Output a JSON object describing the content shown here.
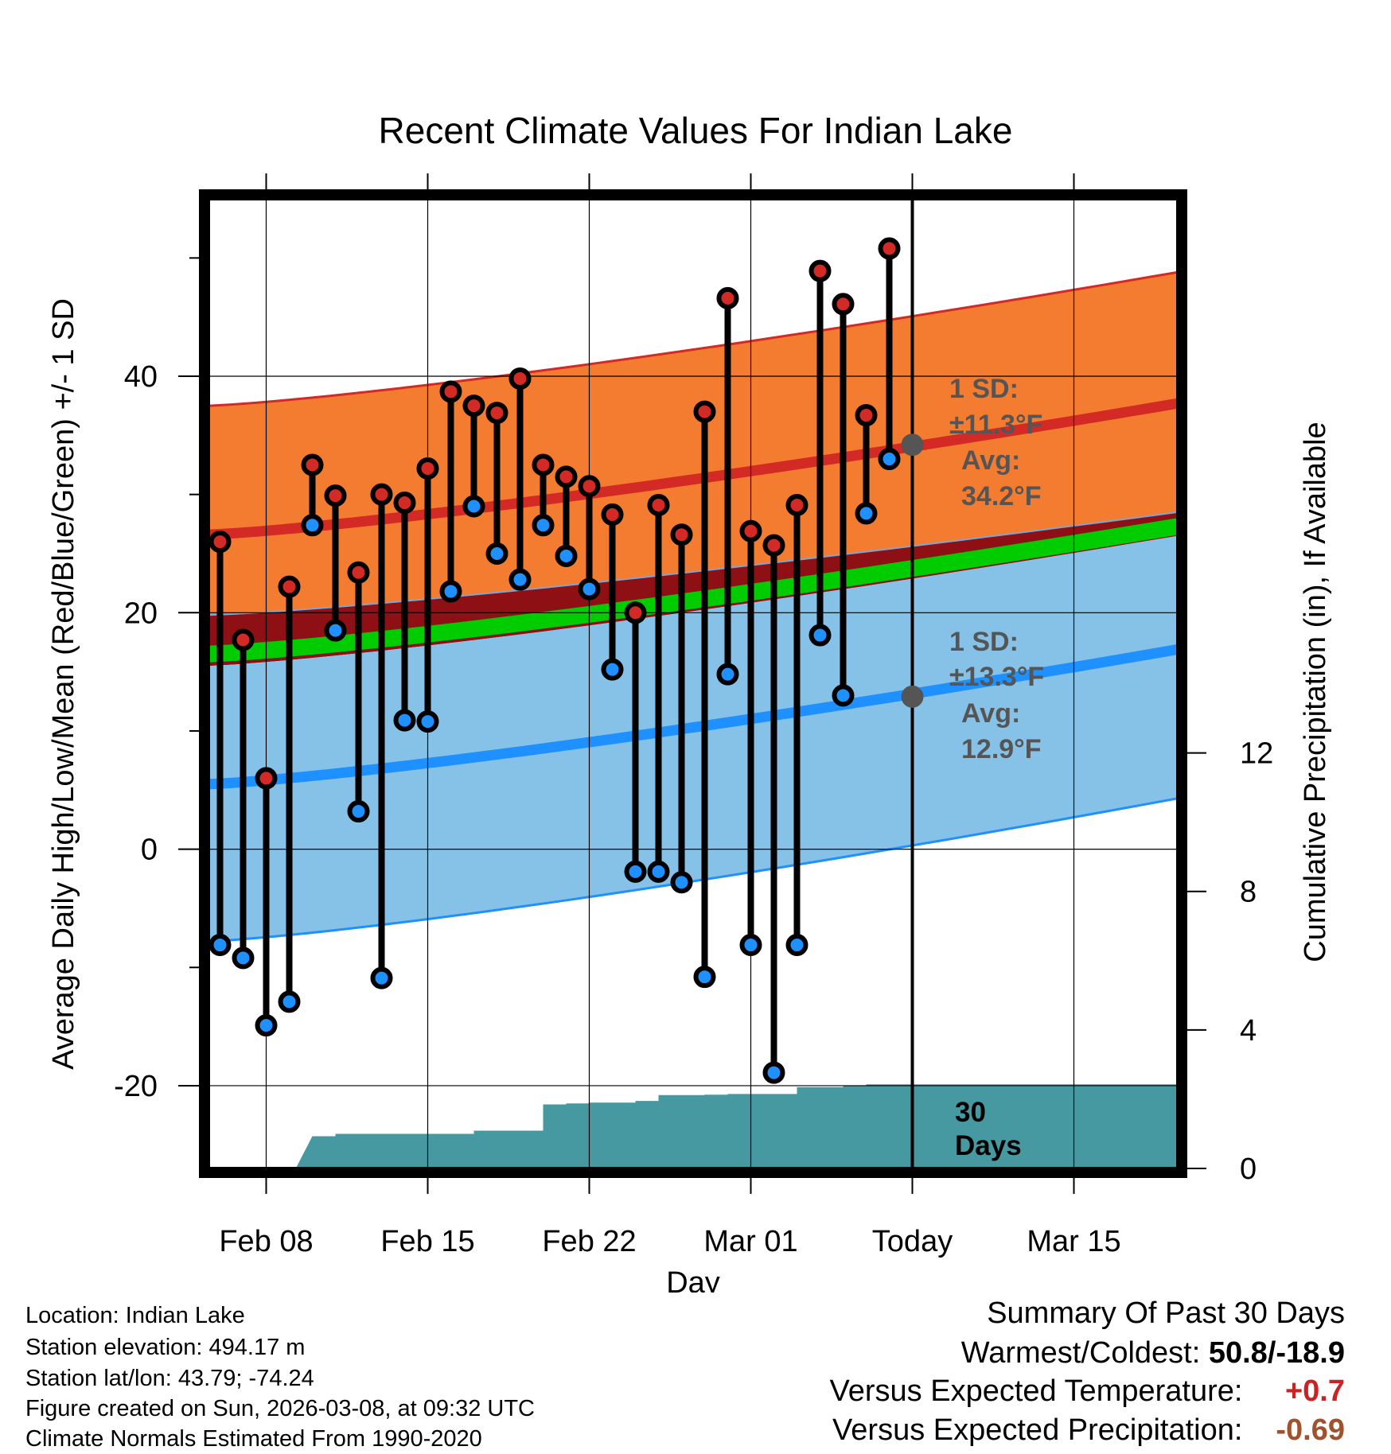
{
  "chart_data": {
    "type": "line",
    "title": "Recent Climate Values For Indian Lake",
    "xlabel": "Day",
    "ylabel": "Average Daily High/Low/Mean (Red/Blue/Green) +/- 1 SD",
    "y2label": "Cumulative Precipitation (in), If Available",
    "ylim": [
      -27,
      55
    ],
    "y2lim": [
      0,
      28
    ],
    "xlim": [
      -0.5,
      41.5
    ],
    "grid": true,
    "x_ticks": [
      {
        "day": 2,
        "label": "Feb 08"
      },
      {
        "day": 9,
        "label": "Feb 15"
      },
      {
        "day": 16,
        "label": "Feb 22"
      },
      {
        "day": 23,
        "label": "Mar 01"
      },
      {
        "day": 30,
        "label": "Today"
      },
      {
        "day": 37,
        "label": "Mar 15"
      }
    ],
    "y_ticks": [
      -20,
      0,
      20,
      40
    ],
    "y2_ticks": [
      0,
      4,
      8,
      12
    ],
    "today_index": 30,
    "daily_days": [
      0,
      1,
      2,
      3,
      4,
      5,
      6,
      7,
      8,
      9,
      10,
      11,
      12,
      13,
      14,
      15,
      16,
      17,
      18,
      19,
      20,
      21,
      22,
      23,
      24,
      25,
      26,
      27,
      28,
      29
    ],
    "daily_high": [
      26,
      17.7,
      6,
      22.2,
      32.5,
      29.9,
      23.4,
      30,
      29.3,
      32.2,
      38.7,
      37.5,
      36.9,
      39.8,
      32.5,
      31.5,
      30.7,
      28.3,
      20,
      29.1,
      26.6,
      37,
      46.6,
      26.9,
      25.7,
      29.1,
      48.9,
      46.1,
      36.7,
      50.8
    ],
    "daily_low": [
      -8.1,
      -9.2,
      -14.9,
      -12.9,
      27.4,
      18.5,
      3.2,
      -10.9,
      10.9,
      10.8,
      21.8,
      29,
      25,
      22.8,
      27.4,
      24.8,
      22,
      15.2,
      -1.9,
      -1.9,
      -2.8,
      -10.8,
      14.8,
      -8.1,
      -18.9,
      -8.1,
      18.1,
      13,
      28.4,
      33
    ],
    "normals": {
      "days": [
        -0.5,
        41.5
      ],
      "high_avg": [
        26.6,
        37.7
      ],
      "high_upper": [
        37.5,
        48.8
      ],
      "high_lower": [
        19.8,
        28.5
      ],
      "low_avg": [
        5.5,
        16.9
      ],
      "low_upper": [
        15.5,
        26.5
      ],
      "low_lower": [
        -7.8,
        4.3
      ],
      "mean_avg": [
        16.5,
        27.3
      ]
    },
    "high_sd_text": "1 SD:",
    "high_sd_value": "±11.3°F",
    "high_avg_label": "Avg:",
    "high_avg_value": "34.2°F",
    "low_sd_text": "1 SD:",
    "low_sd_value": "±13.3°F",
    "low_avg_label": "Avg:",
    "low_avg_value": "12.9°F",
    "today_high_avg": 34.2,
    "today_low_avg": 12.9,
    "precip_days": [
      4,
      5,
      6,
      7,
      8,
      9,
      10,
      11,
      12,
      13,
      14,
      15,
      16,
      17,
      18,
      19,
      20,
      21,
      22,
      23,
      24,
      25,
      26,
      27,
      28,
      29,
      41.5
    ],
    "precip_cum": [
      0.93,
      1.0,
      1.0,
      1.0,
      1.0,
      1.0,
      1.0,
      1.09,
      1.09,
      1.09,
      1.85,
      1.88,
      1.9,
      1.9,
      1.95,
      2.12,
      2.12,
      2.13,
      2.15,
      2.15,
      2.15,
      2.35,
      2.35,
      2.38,
      2.43,
      2.43,
      2.43
    ],
    "days30_label": "30",
    "days30_label2": "Days"
  },
  "footer": {
    "location": "Location: Indian Lake",
    "elevation": "Station elevation: 494.17 m",
    "latlon": "Station lat/lon: 43.79; -74.24",
    "created": "Figure created on Sun, 2026-03-08, at 09:32 UTC",
    "normals": "Climate Normals Estimated From 1990-2020"
  },
  "summary": {
    "title": "Summary Of Past 30 Days",
    "warm_label": "Warmest/Coldest:",
    "warm_value": "50.8/-18.9",
    "temp_label": "Versus Expected Temperature:",
    "temp_value": "+0.7",
    "precip_label": "Versus Expected Precipitation:",
    "precip_value": "-0.69"
  },
  "colors": {
    "high_band": "#f47c30",
    "high_line": "#d42a26",
    "dark_band": "#8e1014",
    "mean_line": "#00cc00",
    "low_band": "#86c2e8",
    "low_line": "#1e90ff",
    "precip": "#4699a0",
    "label_gray": "#555555",
    "temp_anom": "#cc2222",
    "precip_anom": "#a0522d"
  }
}
